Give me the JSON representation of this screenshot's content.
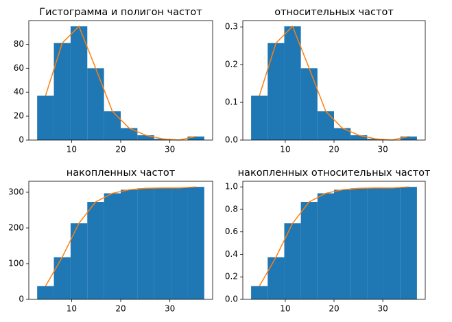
{
  "chart_data": [
    {
      "type": "histogram",
      "title": "Гистограмма и полигон частот",
      "bins": [
        3,
        6.4,
        9.8,
        13.2,
        16.6,
        20,
        23.4,
        26.8,
        30.2,
        33.6,
        37
      ],
      "values": [
        37,
        81,
        95,
        60,
        24,
        10,
        4,
        1,
        0,
        3
      ],
      "color": "#1f77b4",
      "polygon_color": "#ff7f0e",
      "xlim": [
        1.3,
        38.7
      ],
      "xticks": [
        10,
        20,
        30
      ],
      "ylim": [
        0,
        99.75
      ],
      "yticks": [
        0,
        20,
        40,
        60,
        80
      ]
    },
    {
      "type": "histogram",
      "title": "относительных частот",
      "bins": [
        3,
        6.4,
        9.8,
        13.2,
        16.6,
        20,
        23.4,
        26.8,
        30.2,
        33.6,
        37
      ],
      "values": [
        0.1175,
        0.2571,
        0.3016,
        0.1905,
        0.0762,
        0.0317,
        0.0127,
        0.0032,
        0,
        0.0095
      ],
      "color": "#1f77b4",
      "polygon_color": "#ff7f0e",
      "xlim": [
        1.3,
        38.7
      ],
      "xticks": [
        10,
        20,
        30
      ],
      "ylim": [
        0,
        0.3167
      ],
      "yticks": [
        {
          "value": 0,
          "label": "0.0"
        },
        0.1,
        0.2,
        0.3
      ]
    },
    {
      "type": "histogram",
      "title": "накопленных частот",
      "bins": [
        3,
        6.4,
        9.8,
        13.2,
        16.6,
        20,
        23.4,
        26.8,
        30.2,
        33.6,
        37
      ],
      "values": [
        37,
        118,
        213,
        273,
        297,
        307,
        311,
        312,
        312,
        315
      ],
      "color": "#1f77b4",
      "polygon_color": "#ff7f0e",
      "xlim": [
        1.3,
        38.7
      ],
      "xticks": [
        10,
        20,
        30
      ],
      "ylim": [
        0,
        330.75
      ],
      "yticks": [
        0,
        100,
        200,
        300
      ]
    },
    {
      "type": "histogram",
      "title": "накопленных относительных частот",
      "bins": [
        3,
        6.4,
        9.8,
        13.2,
        16.6,
        20,
        23.4,
        26.8,
        30.2,
        33.6,
        37
      ],
      "values": [
        0.1175,
        0.3746,
        0.6762,
        0.8667,
        0.9429,
        0.9746,
        0.9873,
        0.9905,
        0.9905,
        1.0
      ],
      "color": "#1f77b4",
      "polygon_color": "#ff7f0e",
      "xlim": [
        1.3,
        38.7
      ],
      "xticks": [
        10,
        20,
        30
      ],
      "ylim": [
        0,
        1.05
      ],
      "yticks": [
        {
          "value": 0,
          "label": "0.0"
        },
        0.2,
        0.4,
        0.6,
        0.8,
        {
          "value": 1.0,
          "label": "1.0"
        }
      ]
    }
  ]
}
